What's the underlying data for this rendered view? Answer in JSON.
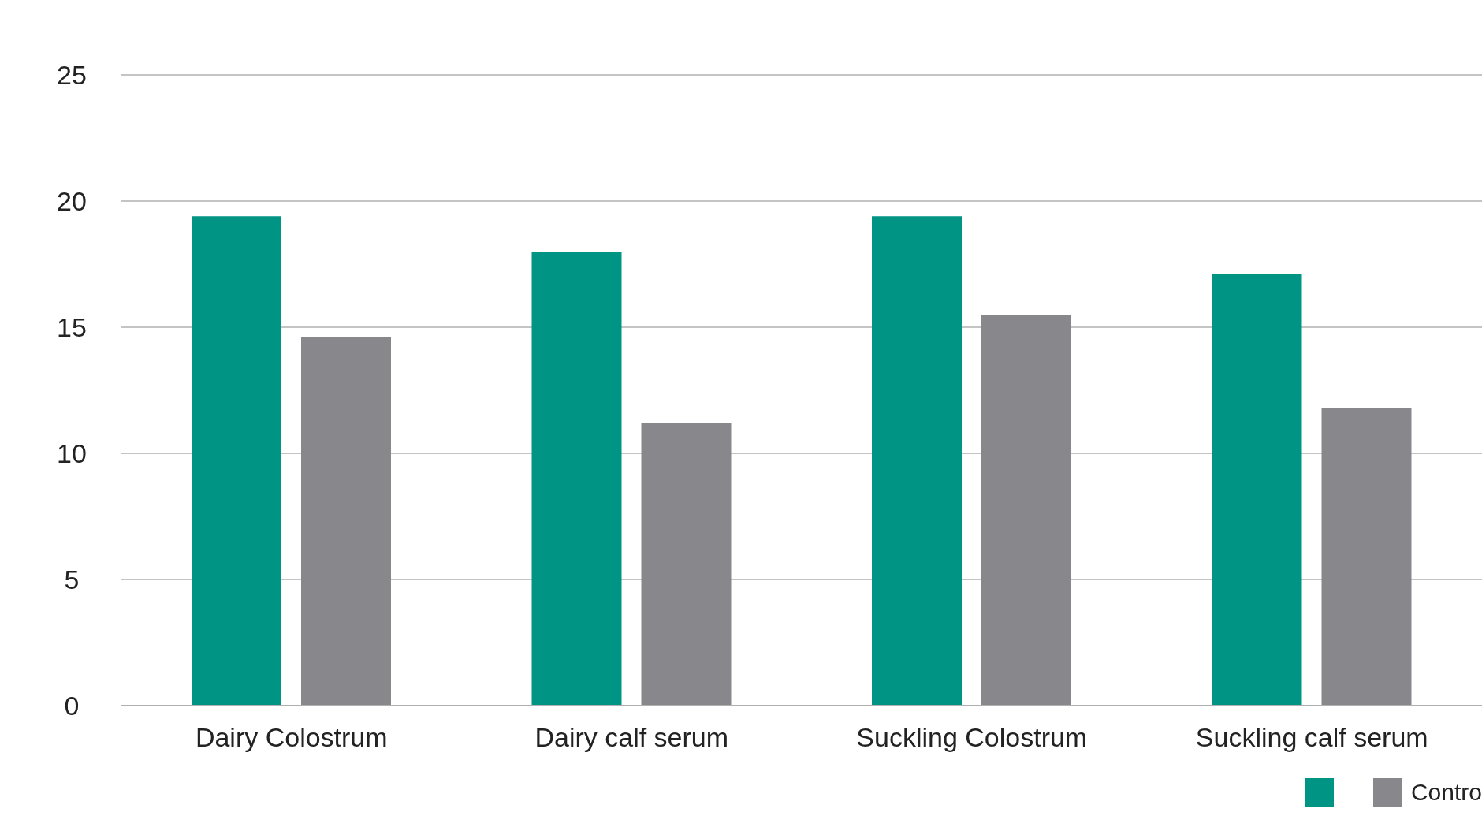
{
  "chart_data": {
    "type": "bar",
    "categories": [
      "Dairy Colostrum",
      "Dairy calf serum",
      "Suckling Colostrum",
      "Suckling calf serum"
    ],
    "series": [
      {
        "color": "#009484",
        "values": [
          19.4,
          18,
          19.4,
          17.1
        ]
      },
      {
        "name": "Contro",
        "color": "#88888c",
        "values": [
          14.6,
          11.2,
          15.5,
          11.8
        ]
      }
    ],
    "ylim": [
      0,
      25
    ],
    "yticks": [
      0,
      5,
      10,
      15,
      20,
      25
    ],
    "grid": "y",
    "legend": "bottom right"
  }
}
